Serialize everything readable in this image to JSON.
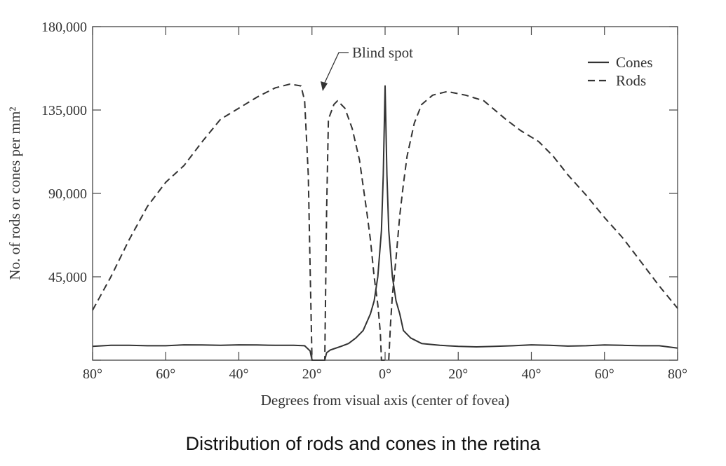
{
  "chart_data": {
    "type": "line",
    "title": "",
    "caption": "Distribution of rods and cones in the retina",
    "xlabel": "Degrees from visual axis (center of fovea)",
    "ylabel": "No. of rods or cones per mm²",
    "xlim": [
      -80,
      80
    ],
    "ylim": [
      0,
      180000
    ],
    "x_ticks": [
      -80,
      -60,
      -40,
      -20,
      0,
      20,
      40,
      60,
      80
    ],
    "x_tick_labels": [
      "80°",
      "60°",
      "40°",
      "20°",
      "0°",
      "20°",
      "40°",
      "60°",
      "80°"
    ],
    "y_ticks": [
      0,
      45000,
      90000,
      135000,
      180000
    ],
    "y_tick_labels": [
      "",
      "45,000",
      "90,000",
      "135,000",
      "180,000"
    ],
    "grid": false,
    "legend_position": "top-right",
    "annotations": [
      {
        "text": "Blind spot",
        "x": -18,
        "y": 143000
      }
    ],
    "series": [
      {
        "name": "Cones",
        "style": "solid",
        "points": [
          [
            -80,
            7500
          ],
          [
            -75,
            8000
          ],
          [
            -70,
            8000
          ],
          [
            -65,
            7800
          ],
          [
            -60,
            7800
          ],
          [
            -55,
            8300
          ],
          [
            -50,
            8200
          ],
          [
            -45,
            8000
          ],
          [
            -40,
            8300
          ],
          [
            -35,
            8200
          ],
          [
            -30,
            8000
          ],
          [
            -25,
            8000
          ],
          [
            -22,
            7800
          ],
          [
            -20.5,
            5000
          ],
          [
            -20,
            0
          ],
          [
            -16.5,
            0
          ],
          [
            -16,
            4000
          ],
          [
            -15,
            5500
          ],
          [
            -12,
            7500
          ],
          [
            -10,
            9000
          ],
          [
            -8,
            12000
          ],
          [
            -6,
            16000
          ],
          [
            -4,
            25000
          ],
          [
            -3,
            32000
          ],
          [
            -2,
            45000
          ],
          [
            -1,
            70000
          ],
          [
            -0.5,
            100000
          ],
          [
            0,
            148000
          ],
          [
            0.5,
            100000
          ],
          [
            1,
            70000
          ],
          [
            2,
            45000
          ],
          [
            3,
            32000
          ],
          [
            4,
            25000
          ],
          [
            5,
            16000
          ],
          [
            7,
            12000
          ],
          [
            10,
            9000
          ],
          [
            15,
            8000
          ],
          [
            20,
            7500
          ],
          [
            25,
            7200
          ],
          [
            30,
            7500
          ],
          [
            35,
            7800
          ],
          [
            40,
            8300
          ],
          [
            45,
            8000
          ],
          [
            50,
            7600
          ],
          [
            55,
            7800
          ],
          [
            60,
            8200
          ],
          [
            65,
            8000
          ],
          [
            70,
            7800
          ],
          [
            75,
            7800
          ],
          [
            80,
            6500
          ]
        ]
      },
      {
        "name": "Rods",
        "style": "dashed",
        "points": [
          [
            -80,
            27000
          ],
          [
            -75,
            45000
          ],
          [
            -70,
            65000
          ],
          [
            -65,
            83000
          ],
          [
            -60,
            96000
          ],
          [
            -55,
            105000
          ],
          [
            -50,
            118000
          ],
          [
            -45,
            130000
          ],
          [
            -40,
            136000
          ],
          [
            -35,
            142000
          ],
          [
            -30,
            147000
          ],
          [
            -26,
            149000
          ],
          [
            -23,
            148000
          ],
          [
            -22,
            140000
          ],
          [
            -21,
            100000
          ],
          [
            -20.5,
            50000
          ],
          [
            -20,
            0
          ],
          [
            -16.5,
            0
          ],
          [
            -16,
            80000
          ],
          [
            -15.5,
            130000
          ],
          [
            -14,
            138000
          ],
          [
            -13,
            140000
          ],
          [
            -11,
            136000
          ],
          [
            -9,
            125000
          ],
          [
            -7,
            108000
          ],
          [
            -5,
            80000
          ],
          [
            -4,
            65000
          ],
          [
            -3,
            45000
          ],
          [
            -2,
            30000
          ],
          [
            -1.3,
            15000
          ],
          [
            -1,
            0
          ],
          [
            1,
            0
          ],
          [
            1.5,
            20000
          ],
          [
            2,
            35000
          ],
          [
            3,
            55000
          ],
          [
            4,
            78000
          ],
          [
            5,
            95000
          ],
          [
            6,
            110000
          ],
          [
            8,
            128000
          ],
          [
            10,
            138000
          ],
          [
            13,
            143000
          ],
          [
            17,
            145000
          ],
          [
            22,
            143000
          ],
          [
            27,
            140000
          ],
          [
            33,
            130000
          ],
          [
            37,
            124000
          ],
          [
            42,
            118000
          ],
          [
            46,
            110000
          ],
          [
            50,
            100000
          ],
          [
            55,
            89000
          ],
          [
            60,
            77000
          ],
          [
            65,
            66000
          ],
          [
            70,
            53000
          ],
          [
            75,
            40000
          ],
          [
            80,
            28000
          ]
        ]
      }
    ]
  }
}
